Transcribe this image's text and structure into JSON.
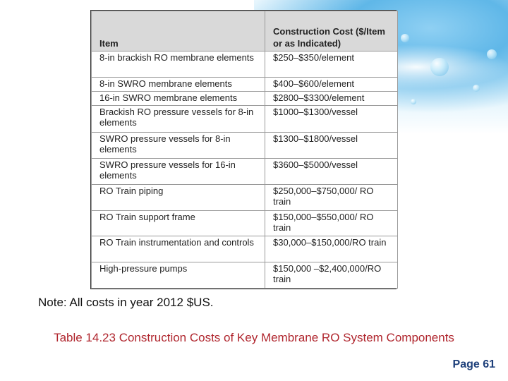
{
  "table": {
    "headers": {
      "item": "Item",
      "cost": "Construction Cost ($/Item or as Indicated)"
    },
    "rows": [
      {
        "item": "8-in brackish RO membrane elements",
        "cost": "$250–$350/element"
      },
      {
        "item": "8-in SWRO membrane elements",
        "cost": "$400–$600/element"
      },
      {
        "item": "16-in SWRO membrane elements",
        "cost": "$2800–$3300/element"
      },
      {
        "item": "Brackish RO pressure vessels for 8-in elements",
        "cost": "$1000–$1300/vessel"
      },
      {
        "item": "SWRO pressure vessels for 8-in elements",
        "cost": "$1300–$1800/vessel"
      },
      {
        "item": "SWRO pressure vessels for 16-in elements",
        "cost": "$3600–$5000/vessel"
      },
      {
        "item": "RO Train piping",
        "cost": "$250,000–$750,000/ RO train"
      },
      {
        "item": "RO Train support frame",
        "cost": "$150,000–$550,000/ RO train"
      },
      {
        "item": "RO Train instrumentation and controls",
        "cost": "$30,000–$150,000/RO train"
      },
      {
        "item": "High-pressure pumps",
        "cost": "$150,000 –$2,400,000/RO train"
      }
    ]
  },
  "note": "Note: All costs in year 2012 $US.",
  "caption": "Table 14.23 Construction Costs of Key Membrane RO System Components",
  "page": "Page 61"
}
